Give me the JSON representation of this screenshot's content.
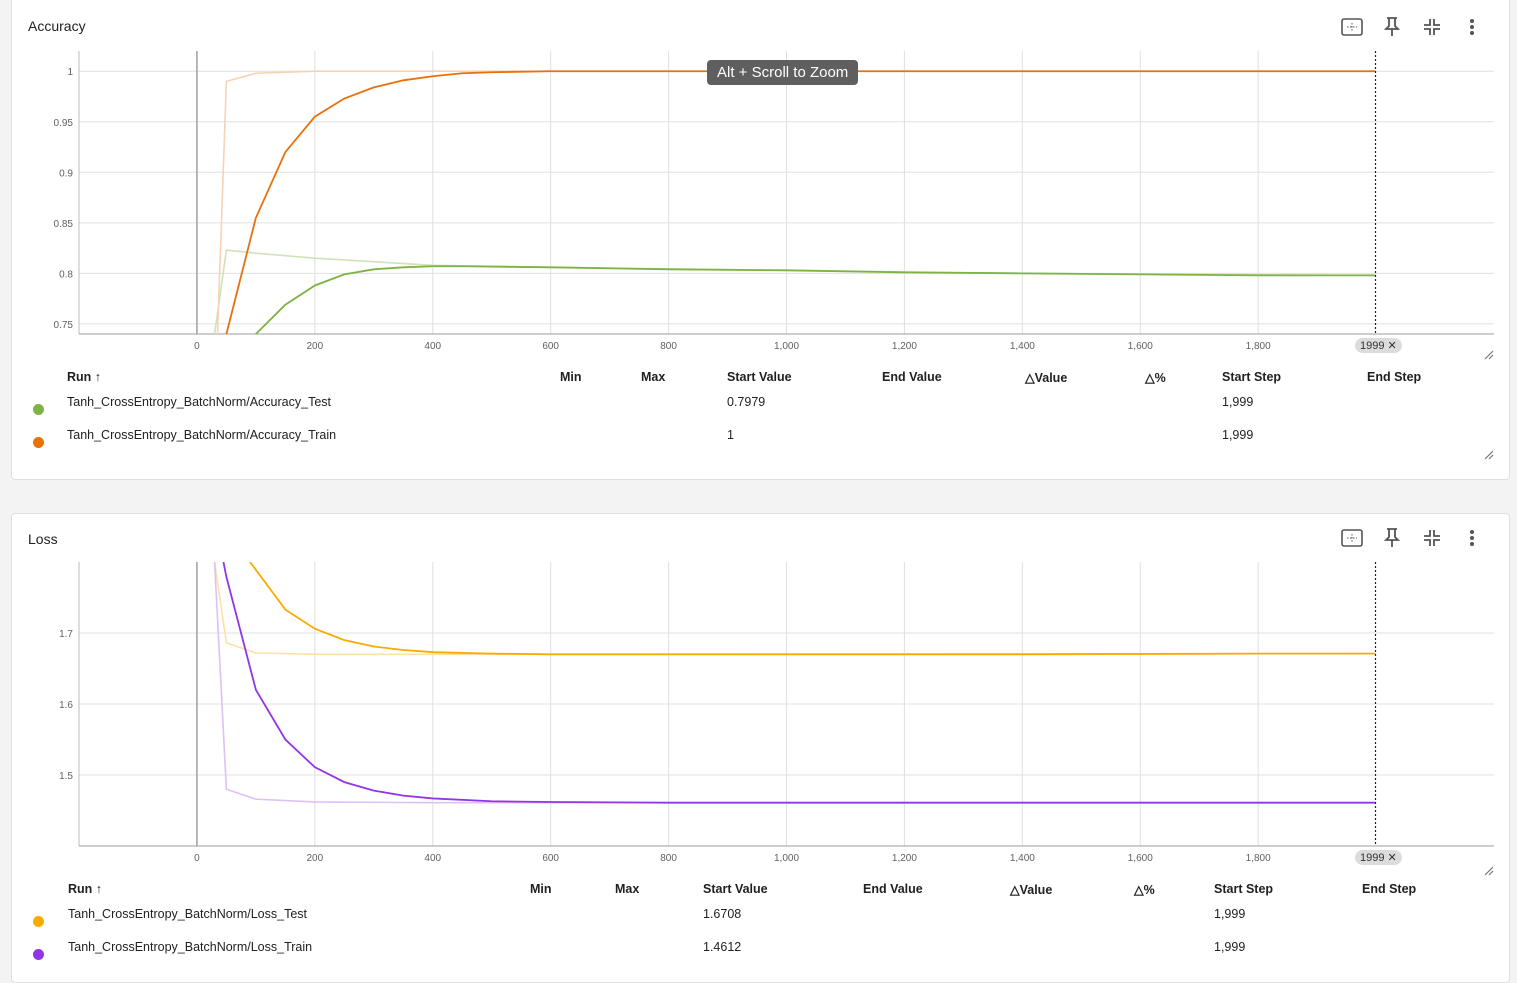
{
  "accuracy": {
    "title": "Accuracy",
    "tooltip": "Alt + Scroll to Zoom",
    "step_badge": "1999",
    "table": {
      "headers": [
        "Run",
        "Min",
        "Max",
        "Start Value",
        "End Value",
        "Value",
        "%",
        "Start Step",
        "End Step"
      ],
      "rows": [
        {
          "run": "Tanh_CrossEntropy_BatchNorm/Accuracy_Test",
          "start_value": "0.7979",
          "start_step": "1,999",
          "color": "#7cb342"
        },
        {
          "run": "Tanh_CrossEntropy_BatchNorm/Accuracy_Train",
          "start_value": "1",
          "start_step": "1,999",
          "color": "#e8710a"
        }
      ]
    }
  },
  "loss": {
    "title": "Loss",
    "step_badge": "1999",
    "table": {
      "headers": [
        "Run",
        "Min",
        "Max",
        "Start Value",
        "End Value",
        "Value",
        "%",
        "Start Step",
        "End Step"
      ],
      "rows": [
        {
          "run": "Tanh_CrossEntropy_BatchNorm/Loss_Test",
          "start_value": "1.6708",
          "start_step": "1,999",
          "color": "#f9ab00"
        },
        {
          "run": "Tanh_CrossEntropy_BatchNorm/Loss_Train",
          "start_value": "1.4612",
          "start_step": "1,999",
          "color": "#9334e6"
        }
      ]
    }
  },
  "chart_data": [
    {
      "type": "line",
      "title": "Accuracy",
      "xlim": [
        -200,
        2200
      ],
      "ylim": [
        0.74,
        1.02
      ],
      "x_ticks": [
        0,
        200,
        400,
        600,
        800,
        1000,
        1200,
        1400,
        1600,
        1800
      ],
      "x_tick_labels": [
        "0",
        "200",
        "400",
        "600",
        "800",
        "1,000",
        "1,200",
        "1,400",
        "1,600",
        "1,800"
      ],
      "y_ticks": [
        0.75,
        0.8,
        0.85,
        0.9,
        0.95,
        1
      ],
      "y_tick_labels": [
        "0.75",
        "0.8",
        "0.85",
        "0.9",
        "0.95",
        "1"
      ],
      "cursor_step": 1999,
      "grid": true,
      "series": [
        {
          "name": "Tanh_CrossEntropy_BatchNorm/Accuracy_Test",
          "color": "#7cb342",
          "raw_color": "#cfe3b8",
          "smoothed": [
            [
              100,
              0.74
            ],
            [
              150,
              0.769
            ],
            [
              200,
              0.788
            ],
            [
              250,
              0.799
            ],
            [
              300,
              0.804
            ],
            [
              350,
              0.806
            ],
            [
              400,
              0.807
            ],
            [
              450,
              0.807
            ],
            [
              600,
              0.806
            ],
            [
              800,
              0.804
            ],
            [
              1000,
              0.803
            ],
            [
              1200,
              0.801
            ],
            [
              1400,
              0.8
            ],
            [
              1600,
              0.799
            ],
            [
              1800,
              0.798
            ],
            [
              1999,
              0.798
            ]
          ],
          "raw": [
            [
              30,
              0.74
            ],
            [
              50,
              0.823
            ],
            [
              100,
              0.82
            ],
            [
              200,
              0.815
            ],
            [
              400,
              0.808
            ],
            [
              600,
              0.806
            ],
            [
              1000,
              0.803
            ],
            [
              1400,
              0.8
            ],
            [
              1999,
              0.798
            ]
          ]
        },
        {
          "name": "Tanh_CrossEntropy_BatchNorm/Accuracy_Train",
          "color": "#e8710a",
          "raw_color": "#f6d3b4",
          "smoothed": [
            [
              50,
              0.74
            ],
            [
              100,
              0.855
            ],
            [
              150,
              0.92
            ],
            [
              200,
              0.955
            ],
            [
              250,
              0.973
            ],
            [
              300,
              0.984
            ],
            [
              350,
              0.991
            ],
            [
              400,
              0.995
            ],
            [
              450,
              0.998
            ],
            [
              500,
              0.999
            ],
            [
              600,
              1.0
            ],
            [
              800,
              1.0
            ],
            [
              1000,
              1.0
            ],
            [
              1400,
              1.0
            ],
            [
              1999,
              1.0
            ]
          ],
          "raw": [
            [
              35,
              0.74
            ],
            [
              50,
              0.99
            ],
            [
              100,
              0.998
            ],
            [
              200,
              1.0
            ],
            [
              400,
              1.0
            ],
            [
              1999,
              1.0
            ]
          ]
        }
      ]
    },
    {
      "type": "line",
      "title": "Loss",
      "xlim": [
        -200,
        2200
      ],
      "ylim": [
        1.4,
        1.8
      ],
      "x_ticks": [
        0,
        200,
        400,
        600,
        800,
        1000,
        1200,
        1400,
        1600,
        1800
      ],
      "x_tick_labels": [
        "0",
        "200",
        "400",
        "600",
        "800",
        "1,000",
        "1,200",
        "1,400",
        "1,600",
        "1,800"
      ],
      "y_ticks": [
        1.5,
        1.6,
        1.7
      ],
      "y_tick_labels": [
        "1.5",
        "1.6",
        "1.7"
      ],
      "cursor_step": 1999,
      "grid": true,
      "series": [
        {
          "name": "Tanh_CrossEntropy_BatchNorm/Loss_Test",
          "color": "#f9ab00",
          "raw_color": "#fde2a6",
          "smoothed": [
            [
              90,
              1.8
            ],
            [
              100,
              1.789
            ],
            [
              150,
              1.733
            ],
            [
              200,
              1.706
            ],
            [
              250,
              1.69
            ],
            [
              300,
              1.681
            ],
            [
              350,
              1.676
            ],
            [
              400,
              1.673
            ],
            [
              500,
              1.671
            ],
            [
              600,
              1.67
            ],
            [
              800,
              1.67
            ],
            [
              1000,
              1.67
            ],
            [
              1400,
              1.67
            ],
            [
              1800,
              1.671
            ],
            [
              1999,
              1.671
            ]
          ],
          "raw": [
            [
              30,
              1.8
            ],
            [
              50,
              1.686
            ],
            [
              100,
              1.672
            ],
            [
              200,
              1.67
            ],
            [
              400,
              1.67
            ],
            [
              1999,
              1.671
            ]
          ]
        },
        {
          "name": "Tanh_CrossEntropy_BatchNorm/Loss_Train",
          "color": "#9334e6",
          "raw_color": "#dcc1f5",
          "smoothed": [
            [
              45,
              1.8
            ],
            [
              50,
              1.779
            ],
            [
              100,
              1.62
            ],
            [
              150,
              1.55
            ],
            [
              200,
              1.511
            ],
            [
              250,
              1.49
            ],
            [
              300,
              1.478
            ],
            [
              350,
              1.471
            ],
            [
              400,
              1.467
            ],
            [
              500,
              1.463
            ],
            [
              600,
              1.462
            ],
            [
              800,
              1.461
            ],
            [
              1999,
              1.461
            ]
          ],
          "raw": [
            [
              30,
              1.8
            ],
            [
              50,
              1.48
            ],
            [
              100,
              1.466
            ],
            [
              200,
              1.462
            ],
            [
              400,
              1.461
            ],
            [
              1999,
              1.461
            ]
          ]
        }
      ]
    }
  ]
}
